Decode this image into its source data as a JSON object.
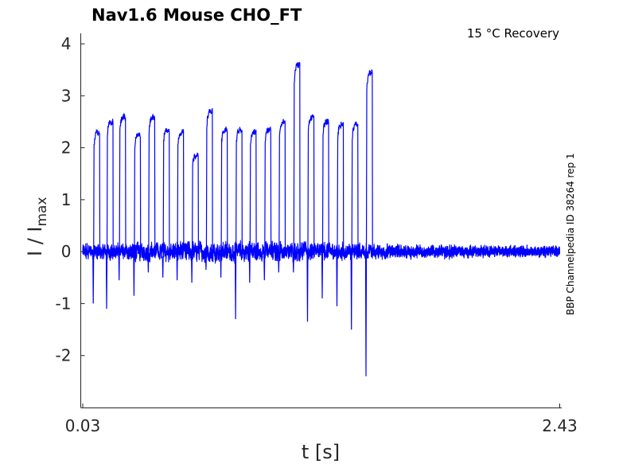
{
  "chart_data": {
    "type": "line",
    "title": "Nav1.6  Mouse  CHO_FT",
    "annotation": "15 °C  Recovery",
    "side_label": "BBP Channelpedia ID 38264 rep 1",
    "xlabel": "t [s]",
    "ylabel_main": "I / I",
    "ylabel_sub": "max",
    "x_ticks": [
      "0.03",
      "2.43"
    ],
    "x_tick_values": [
      0.03,
      2.43
    ],
    "xlim": [
      0.02,
      2.44
    ],
    "y_ticks": [
      "-2",
      "-1",
      "0",
      "1",
      "2",
      "3",
      "4"
    ],
    "y_tick_values": [
      -2,
      -1,
      0,
      1,
      2,
      3,
      4
    ],
    "ylim": [
      -3.0,
      4.2
    ],
    "grid": false,
    "line_color": "#0000ff",
    "series": [
      {
        "pulse_times_s": [
          0.085,
          0.152,
          0.215,
          0.29,
          0.362,
          0.435,
          0.507,
          0.581,
          0.652,
          0.727,
          0.801,
          0.872,
          0.946,
          1.018,
          1.092,
          1.163,
          1.237,
          1.311,
          1.384,
          1.457
        ],
        "pulse_peaks": [
          2.3,
          2.5,
          2.6,
          2.25,
          2.6,
          2.35,
          2.3,
          1.85,
          2.7,
          2.35,
          2.35,
          2.3,
          2.35,
          2.5,
          3.6,
          2.6,
          2.5,
          2.45,
          2.45,
          3.45
        ],
        "pulse_troughs": [
          -1.0,
          -1.1,
          -0.55,
          -0.85,
          -0.4,
          -0.5,
          -0.55,
          -0.6,
          -0.35,
          -0.5,
          -1.3,
          -0.6,
          -0.55,
          -0.4,
          -0.4,
          -1.35,
          -0.9,
          -1.05,
          -1.5,
          -2.4
        ]
      }
    ]
  }
}
